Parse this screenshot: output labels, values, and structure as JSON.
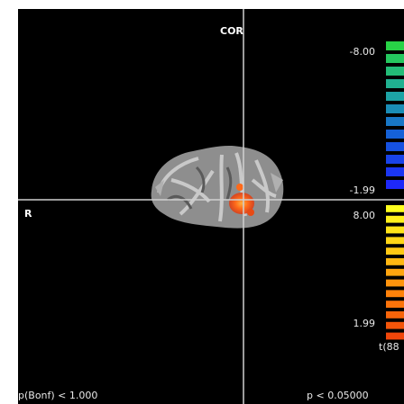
{
  "view": {
    "label": "COR",
    "side": "R"
  },
  "colorbar": {
    "negative": {
      "max": "-8.00",
      "min": "-1.99"
    },
    "positive": {
      "max": "8.00",
      "min": "1.99"
    },
    "stat": "t(88"
  },
  "footer": {
    "left": "p(Bonf) < 1.000",
    "right": "p < 0.05000"
  }
}
